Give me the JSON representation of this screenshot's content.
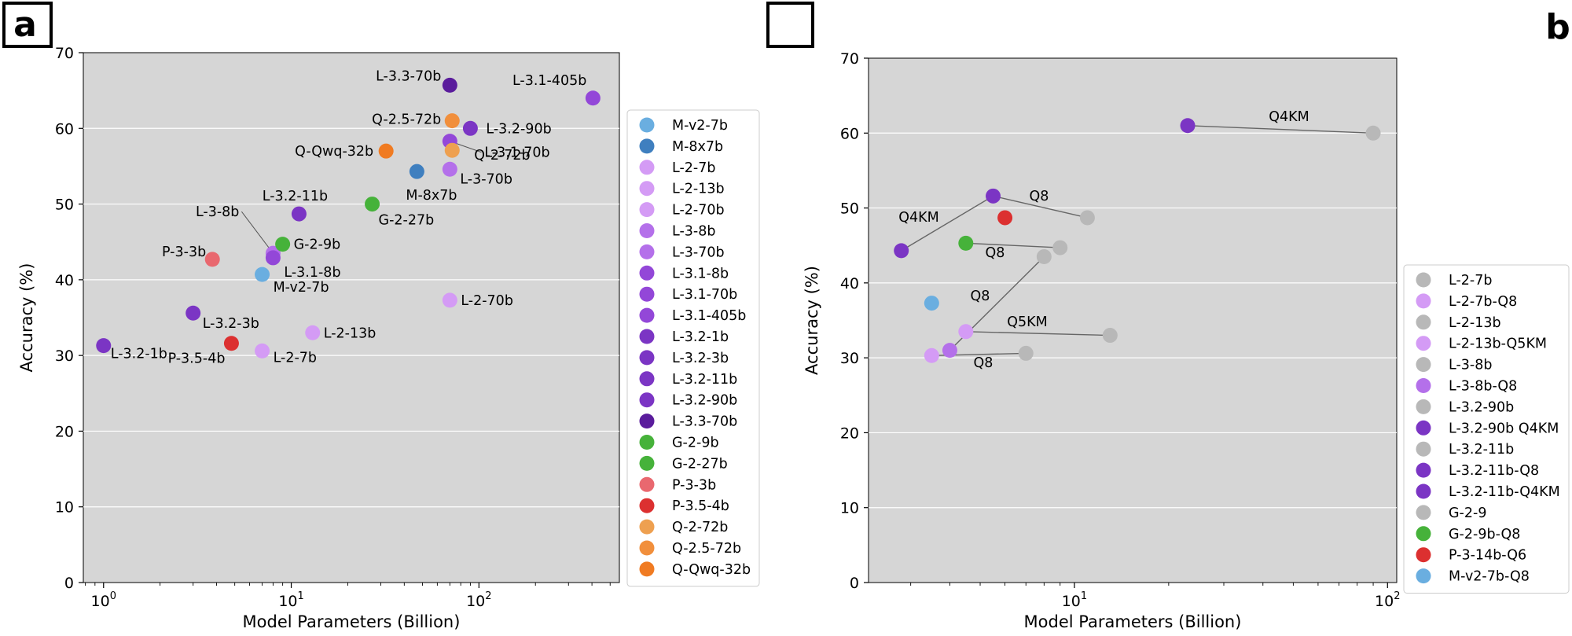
{
  "chart_data": [
    {
      "panel": "a",
      "type": "scatter",
      "xscale": "log",
      "xlabel": "Model Parameters (Billion)",
      "ylabel": "Accuracy (%)",
      "ylim": [
        0,
        70
      ],
      "yticks": [
        0,
        10,
        20,
        30,
        40,
        50,
        60,
        70
      ],
      "xticks": [
        {
          "value": 1,
          "label": "10",
          "exp": "0"
        },
        {
          "value": 10,
          "label": "10",
          "exp": "1"
        },
        {
          "value": 100,
          "label": "10",
          "exp": "2"
        }
      ],
      "legend_position": "right",
      "points": [
        {
          "name": "M-v2-7b",
          "x": 7,
          "y": 40.7,
          "color": "#6aaee0"
        },
        {
          "name": "M-8x7b",
          "x": 46.7,
          "y": 54.3,
          "color": "#3f7fbf"
        },
        {
          "name": "L-2-7b",
          "x": 7,
          "y": 30.6,
          "color": "#d49bf5"
        },
        {
          "name": "L-2-13b",
          "x": 13,
          "y": 33.0,
          "color": "#d49bf5"
        },
        {
          "name": "L-2-70b",
          "x": 70,
          "y": 37.3,
          "color": "#d49bf5"
        },
        {
          "name": "L-3-8b",
          "x": 8,
          "y": 43.5,
          "color": "#b470ea"
        },
        {
          "name": "L-3-70b",
          "x": 70,
          "y": 54.6,
          "color": "#b470ea"
        },
        {
          "name": "L-3.1-8b",
          "x": 8,
          "y": 42.9,
          "color": "#9347d8"
        },
        {
          "name": "L-3.1-70b",
          "x": 70,
          "y": 58.3,
          "color": "#9347d8"
        },
        {
          "name": "L-3.1-405b",
          "x": 405,
          "y": 64.0,
          "color": "#9347d8"
        },
        {
          "name": "L-3.2-1b",
          "x": 1,
          "y": 31.3,
          "color": "#7b35c4"
        },
        {
          "name": "L-3.2-3b",
          "x": 3,
          "y": 35.6,
          "color": "#7b35c4"
        },
        {
          "name": "L-3.2-11b",
          "x": 11,
          "y": 48.7,
          "color": "#7b35c4"
        },
        {
          "name": "L-3.2-90b",
          "x": 90,
          "y": 60.0,
          "color": "#7b35c4"
        },
        {
          "name": "L-3.3-70b",
          "x": 70,
          "y": 65.7,
          "color": "#5a1c9c"
        },
        {
          "name": "G-2-9b",
          "x": 9,
          "y": 44.7,
          "color": "#46b23a"
        },
        {
          "name": "G-2-27b",
          "x": 27,
          "y": 50.0,
          "color": "#46b23a"
        },
        {
          "name": "P-3-3b",
          "x": 3.8,
          "y": 42.7,
          "color": "#e9686f"
        },
        {
          "name": "P-3.5-4b",
          "x": 4.8,
          "y": 31.6,
          "color": "#dc3030"
        },
        {
          "name": "Q-2-72b",
          "x": 72,
          "y": 57.1,
          "color": "#eea050"
        },
        {
          "name": "Q-2.5-72b",
          "x": 72,
          "y": 61.0,
          "color": "#f18f3c"
        },
        {
          "name": "Q-Qwq-32b",
          "x": 32,
          "y": 57.0,
          "color": "#f07b22"
        }
      ],
      "legend": [
        "M-v2-7b",
        "M-8x7b",
        "L-2-7b",
        "L-2-13b",
        "L-2-70b",
        "L-3-8b",
        "L-3-70b",
        "L-3.1-8b",
        "L-3.1-70b",
        "L-3.1-405b",
        "L-3.2-1b",
        "L-3.2-3b",
        "L-3.2-11b",
        "L-3.2-90b",
        "L-3.3-70b",
        "G-2-9b",
        "G-2-27b",
        "P-3-3b",
        "P-3.5-4b",
        "Q-2-72b",
        "Q-2.5-72b",
        "Q-Qwq-32b"
      ]
    },
    {
      "panel": "b",
      "type": "scatter",
      "xscale": "log",
      "xlabel": "Model Parameters (Billion)",
      "ylabel": "Accuracy (%)",
      "ylim": [
        0,
        70
      ],
      "yticks": [
        0,
        10,
        20,
        30,
        40,
        50,
        60,
        70
      ],
      "xticks": [
        {
          "value": 10,
          "label": "10",
          "exp": "1"
        },
        {
          "value": 100,
          "label": "10",
          "exp": "2"
        }
      ],
      "legend_position": "lower right",
      "points": [
        {
          "name": "L-2-7b",
          "x": 7,
          "y": 30.6,
          "color": "#b8b8b8"
        },
        {
          "name": "L-2-7b-Q8",
          "x": 3.5,
          "y": 30.3,
          "color": "#d49bf5"
        },
        {
          "name": "L-2-13b",
          "x": 13,
          "y": 33.0,
          "color": "#b8b8b8"
        },
        {
          "name": "L-2-13b-Q5KM",
          "x": 4.5,
          "y": 33.5,
          "color": "#d49bf5"
        },
        {
          "name": "L-3-8b",
          "x": 8,
          "y": 43.5,
          "color": "#b8b8b8"
        },
        {
          "name": "L-3-8b-Q8",
          "x": 4,
          "y": 31.0,
          "color": "#b470ea"
        },
        {
          "name": "L-3.2-90b",
          "x": 90,
          "y": 60.0,
          "color": "#b8b8b8"
        },
        {
          "name": "L-3.2-90b Q4KM",
          "x": 23,
          "y": 61.0,
          "color": "#7b35c4"
        },
        {
          "name": "L-3.2-11b",
          "x": 11,
          "y": 48.7,
          "color": "#b8b8b8"
        },
        {
          "name": "L-3.2-11b-Q8",
          "x": 5.5,
          "y": 51.6,
          "color": "#7b35c4"
        },
        {
          "name": "L-3.2-11b-Q4KM",
          "x": 2.8,
          "y": 44.3,
          "color": "#7b35c4"
        },
        {
          "name": "G-2-9",
          "x": 9,
          "y": 44.7,
          "color": "#b8b8b8"
        },
        {
          "name": "G-2-9b-Q8",
          "x": 4.5,
          "y": 45.3,
          "color": "#46b23a"
        },
        {
          "name": "P-3-14b-Q6",
          "x": 6,
          "y": 48.7,
          "color": "#dc3030"
        },
        {
          "name": "M-v2-7b-Q8",
          "x": 3.5,
          "y": 37.3,
          "color": "#6aaee0"
        }
      ],
      "connections": [
        {
          "from": "L-2-7b-Q8",
          "to": "L-2-7b",
          "label": "Q8"
        },
        {
          "from": "L-2-13b-Q5KM",
          "to": "L-2-13b",
          "label": "Q5KM"
        },
        {
          "from": "L-3-8b-Q8",
          "to": "L-3-8b",
          "label": "Q8"
        },
        {
          "from": "L-3.2-90b Q4KM",
          "to": "L-3.2-90b",
          "label": "Q4KM"
        },
        {
          "from": "L-3.2-11b-Q8",
          "to": "L-3.2-11b",
          "label": "Q8"
        },
        {
          "from": "L-3.2-11b-Q4KM",
          "to": "L-3.2-11b-Q8",
          "label": "Q4KM"
        },
        {
          "from": "G-2-9b-Q8",
          "to": "G-2-9",
          "label": "Q8"
        }
      ],
      "legend": [
        "L-2-7b",
        "L-2-7b-Q8",
        "L-2-13b",
        "L-2-13b-Q5KM",
        "L-3-8b",
        "L-3-8b-Q8",
        "L-3.2-90b",
        "L-3.2-90b Q4KM",
        "L-3.2-11b",
        "L-3.2-11b-Q8",
        "L-3.2-11b-Q4KM",
        "G-2-9",
        "G-2-9b-Q8",
        "P-3-14b-Q6",
        "M-v2-7b-Q8"
      ]
    }
  ]
}
